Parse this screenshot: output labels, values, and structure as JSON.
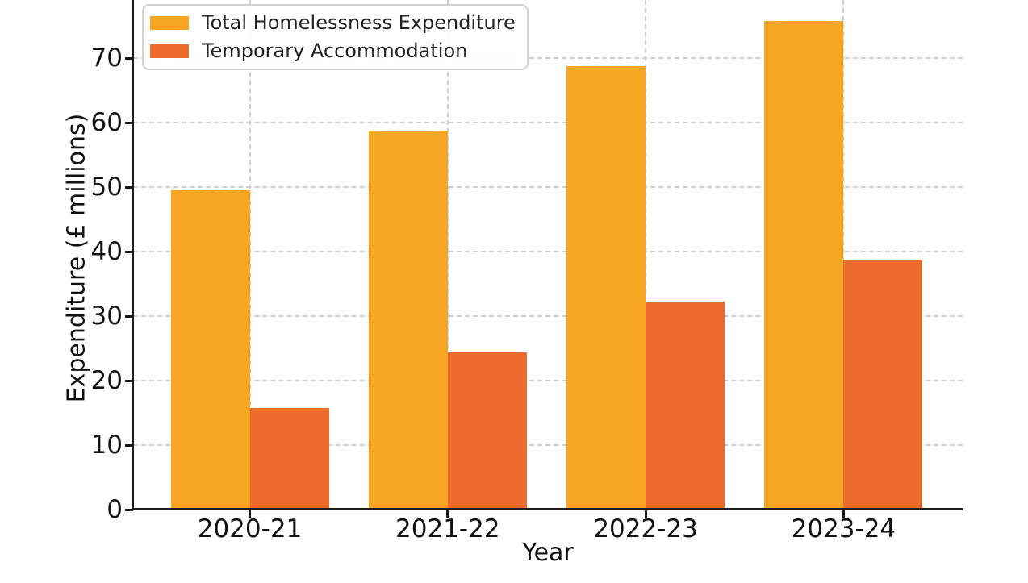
{
  "chart_data": {
    "type": "bar",
    "title": "",
    "xlabel": "Year",
    "ylabel": "Expenditure (£ millions)",
    "categories": [
      "2020-21",
      "2021-22",
      "2022-23",
      "2023-24"
    ],
    "series": [
      {
        "name": "Total Homelessness Expenditure",
        "color": "#F6A623",
        "values": [
          49.5,
          58.8,
          68.8,
          75.8
        ]
      },
      {
        "name": "Temporary Accommodation",
        "color": "#ED6C2D",
        "values": [
          15.8,
          24.4,
          32.2,
          38.8
        ]
      }
    ],
    "yticks": [
      0,
      10,
      20,
      30,
      40,
      50,
      60,
      70
    ],
    "ylim": [
      0,
      79
    ],
    "grid": "dashed",
    "grid_color": "#cdcdcd",
    "axis_color": "#1c1c1c",
    "background": "#ffffff",
    "legend_position": "upper-left",
    "note_top_cropped": "chart top edge is cut off above y=79"
  }
}
